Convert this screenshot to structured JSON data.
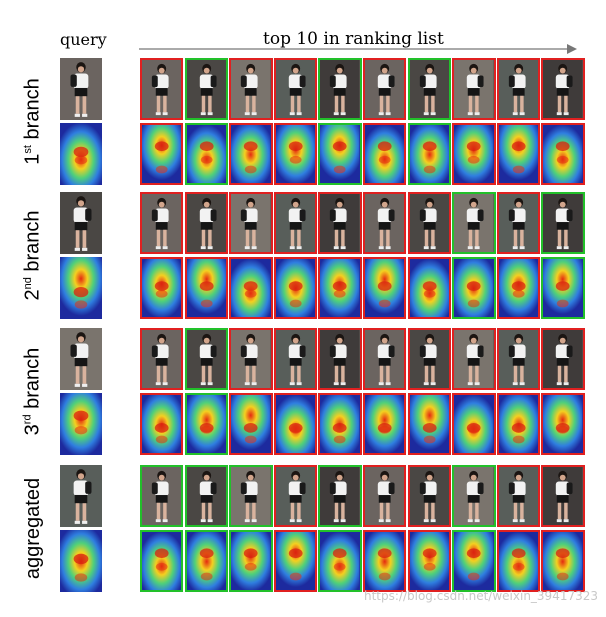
{
  "header": {
    "query_label": "query",
    "ranking_label": "top 10 in ranking list"
  },
  "colors": {
    "correct_match": "#22c02a",
    "wrong_match": "#e02020",
    "heatmap_low": "#1d2a9e",
    "heatmap_high": "#e52a10"
  },
  "branches": [
    {
      "label_num": "1",
      "label_sup": "st",
      "label_rest": " branch",
      "frames": [
        "red",
        "green",
        "red",
        "red",
        "green",
        "red",
        "green",
        "red",
        "red",
        "red"
      ]
    },
    {
      "label_num": "2",
      "label_sup": "nd",
      "label_rest": " branch",
      "frames": [
        "red",
        "red",
        "red",
        "red",
        "red",
        "red",
        "red",
        "green",
        "red",
        "green"
      ]
    },
    {
      "label_num": "3",
      "label_sup": "rd",
      "label_rest": " branch",
      "frames": [
        "red",
        "green",
        "red",
        "red",
        "red",
        "red",
        "red",
        "red",
        "red",
        "red"
      ]
    },
    {
      "label_num": "",
      "label_sup": "",
      "label_rest": "aggregated",
      "frames": [
        "green",
        "green",
        "green",
        "red",
        "green",
        "red",
        "red",
        "green",
        "red",
        "red"
      ]
    }
  ],
  "watermark": "https://blog.csdn.net/weixin_39417323"
}
